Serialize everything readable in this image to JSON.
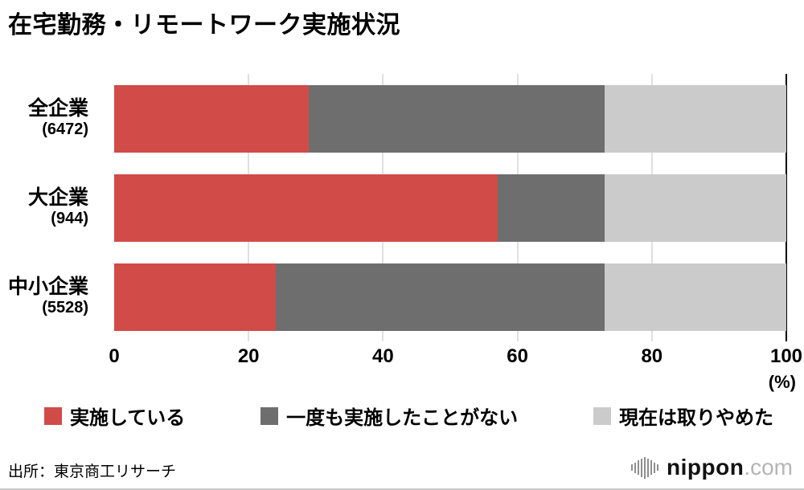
{
  "title": "在宅勤務・リモートワーク実施状況",
  "chart_data": {
    "type": "bar",
    "orientation": "horizontal",
    "stacked": true,
    "title": "在宅勤務・リモートワーク実施状況",
    "categories": [
      "全企業",
      "大企業",
      "中小企業"
    ],
    "category_counts": [
      "(6472)",
      "(944)",
      "(5528)"
    ],
    "series": [
      {
        "name": "実施している",
        "color": "#d14b48",
        "values": [
          29,
          57,
          24
        ]
      },
      {
        "name": "一度も実施したことがない",
        "color": "#6e6e6e",
        "values": [
          44,
          16,
          49
        ]
      },
      {
        "name": "現在は取りやめた",
        "color": "#cbcbcb",
        "values": [
          27,
          27,
          27
        ]
      }
    ],
    "xlim": [
      0,
      100
    ],
    "x_ticks": [
      0,
      20,
      40,
      60,
      80,
      100
    ],
    "x_unit": "(%)",
    "grid": true,
    "legend_position": "bottom"
  },
  "source": "出所：東京商工リサーチ",
  "logo": {
    "text": "nippon",
    "suffix": ".com"
  }
}
